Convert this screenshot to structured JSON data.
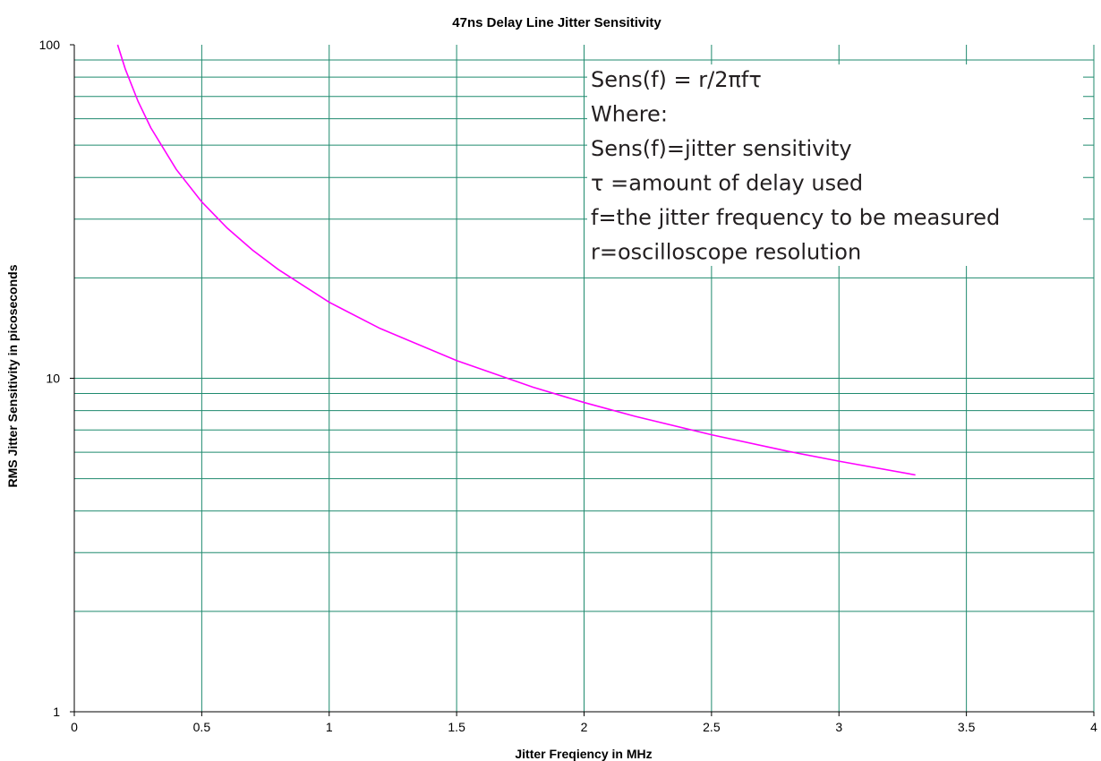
{
  "chart_data": {
    "type": "line",
    "title": "47ns Delay Line Jitter Sensitivity",
    "xlabel": "Jitter Freqiency in MHz",
    "ylabel": "RMS Jitter Sensitivity in picoseconds",
    "xlim": [
      0,
      4
    ],
    "ylim": [
      1,
      100
    ],
    "y_scale": "log",
    "x_ticks": [
      0,
      0.5,
      1,
      1.5,
      2,
      2.5,
      3,
      3.5,
      4
    ],
    "x_tick_labels": [
      "0",
      "0.5",
      "1",
      "1.5",
      "2",
      "2.5",
      "3",
      "3.5",
      "4"
    ],
    "y_ticks": [
      1,
      10,
      100
    ],
    "y_tick_labels": [
      "1",
      "10",
      "100"
    ],
    "grid": true,
    "legend": "none",
    "series": [
      {
        "color": "#ff00ff",
        "x": [
          0.17,
          0.2,
          0.25,
          0.3,
          0.4,
          0.5,
          0.6,
          0.7,
          0.8,
          1.0,
          1.2,
          1.5,
          1.8,
          2.0,
          2.2,
          2.5,
          2.8,
          3.0,
          3.3
        ],
        "y": [
          100,
          84.6,
          67.7,
          56.4,
          42.3,
          33.8,
          28.2,
          24.2,
          21.2,
          16.9,
          14.1,
          11.3,
          9.4,
          8.46,
          7.69,
          6.77,
          6.04,
          5.64,
          5.13
        ]
      }
    ],
    "annotation": {
      "lines": [
        "Sens(f) = r/2πfτ",
        "Where:",
        "Sens(f)=jitter sensitivity",
        "τ =amount of delay used",
        "f=the jitter frequency to be measured",
        "r=oscilloscope resolution"
      ]
    }
  }
}
